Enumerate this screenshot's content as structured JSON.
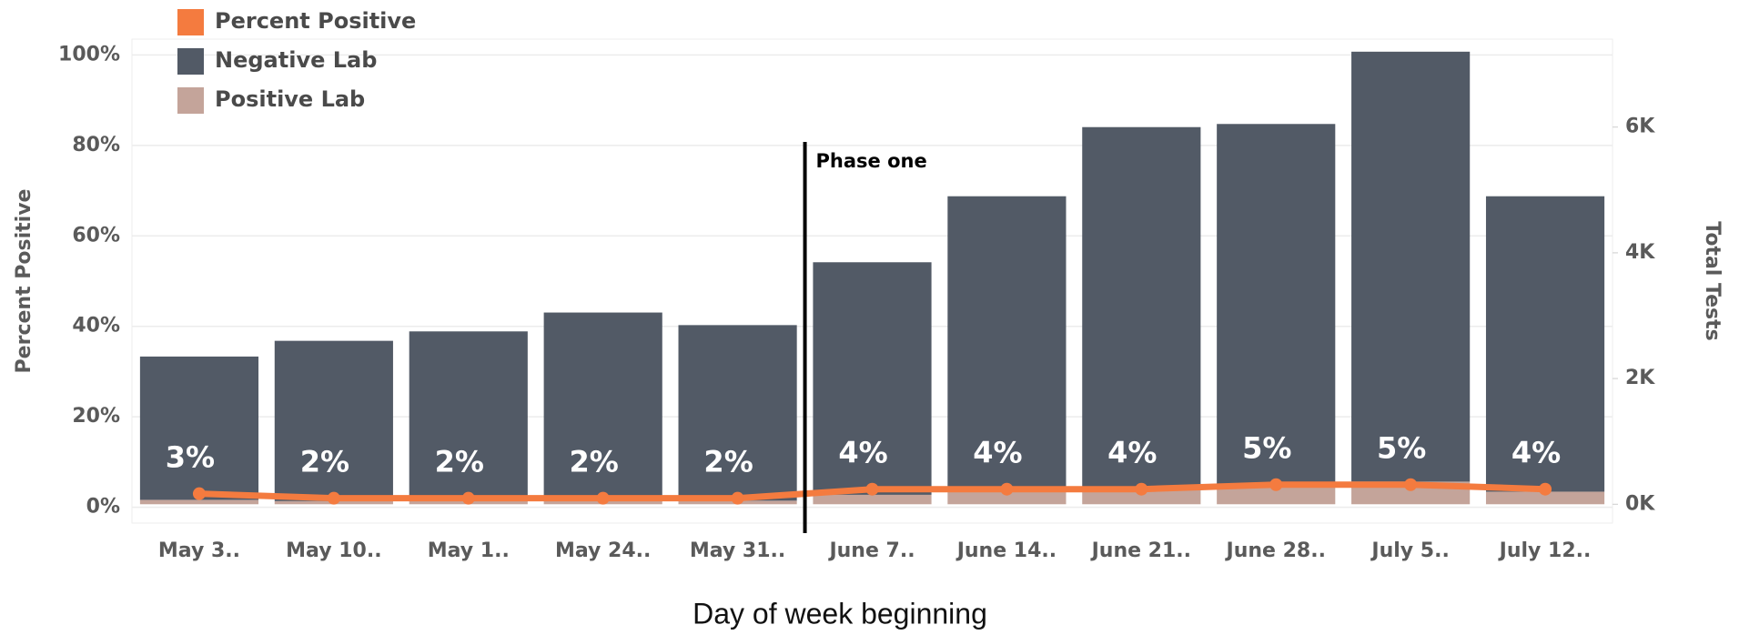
{
  "chart_data": {
    "type": "combo",
    "categories": [
      "May 3..",
      "May 10..",
      "May 1..",
      "May 24..",
      "May 31..",
      "June 7..",
      "June 14..",
      "June 21..",
      "June 28..",
      "July 5..",
      "July 12.."
    ],
    "series": [
      {
        "name": "Percent Positive",
        "type": "line",
        "color": "#f47b3f",
        "values": [
          3,
          2,
          2,
          2,
          2,
          4,
          4,
          4,
          5,
          5,
          4
        ],
        "value_labels": [
          "3%",
          "2%",
          "2%",
          "2%",
          "2%",
          "4%",
          "4%",
          "4%",
          "5%",
          "5%",
          "4%"
        ]
      },
      {
        "name": "Negative Lab",
        "type": "bar",
        "axis": "y2",
        "color": "#525a66",
        "values": [
          2280,
          2550,
          2695,
          2990,
          2793,
          3700,
          4700,
          5760,
          5750,
          6840,
          4700
        ]
      },
      {
        "name": "Positive Lab",
        "type": "bar",
        "axis": "y2",
        "color": "#c4a49a",
        "values": [
          70,
          50,
          55,
          60,
          57,
          150,
          200,
          240,
          300,
          360,
          200
        ]
      }
    ],
    "stacked": true,
    "ylabel": "Percent Positive",
    "y2label": "Total Tests",
    "xlabel": "Day of week beginning",
    "annotation": "Phase one",
    "ylim": [
      -3.5,
      103.5
    ],
    "yticks": [
      {
        "value": 0,
        "label": "0%"
      },
      {
        "value": 20,
        "label": "20%"
      },
      {
        "value": 40,
        "label": "40%"
      },
      {
        "value": 60,
        "label": "60%"
      },
      {
        "value": 80,
        "label": "80%"
      },
      {
        "value": 100,
        "label": "100%"
      }
    ],
    "y2lim": [
      -300,
      7400
    ],
    "y2ticks": [
      {
        "value": 0,
        "label": "0K"
      },
      {
        "value": 2000,
        "label": "2K"
      },
      {
        "value": 4000,
        "label": "4K"
      },
      {
        "value": 6000,
        "label": "6K"
      }
    ],
    "grid": true,
    "legend": "top-left"
  }
}
